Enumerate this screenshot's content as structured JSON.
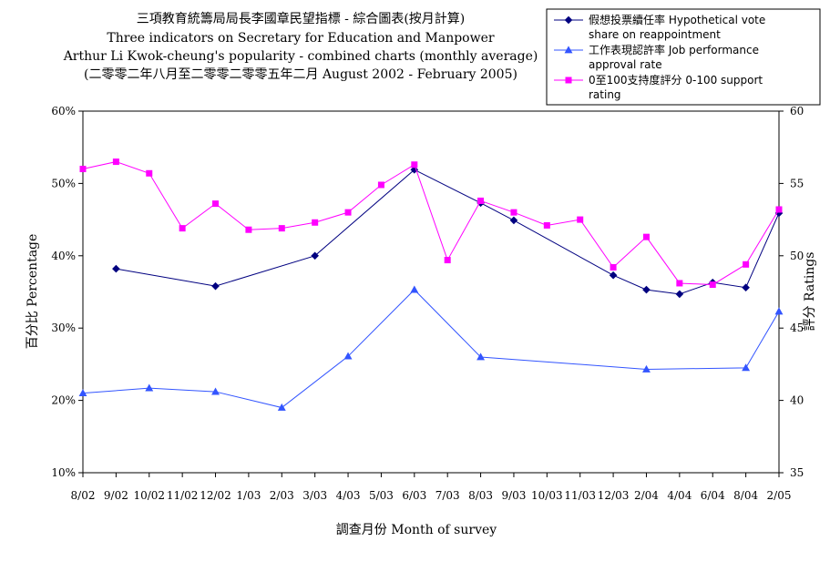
{
  "chart_data": {
    "type": "line",
    "title_lines": [
      "三項教育統籌局局長李國章民望指標 - 綜合圖表(按月計算)",
      "Three indicators on Secretary for Education and Manpower",
      "Arthur Li Kwok-cheung's popularity - combined charts (monthly average)",
      "(二零零二年八月至二零零二零零五年二月 August 2002 - February 2005)"
    ],
    "xlabel": "調查月份  Month of survey",
    "ylabel_left": "百分比  Percentage",
    "ylabel_right": "評分  Ratings",
    "categories": [
      "8/02",
      "9/02",
      "10/02",
      "11/02",
      "12/02",
      "1/03",
      "2/03",
      "3/03",
      "4/03",
      "5/03",
      "6/03",
      "7/03",
      "8/03",
      "9/03",
      "10/03",
      "11/03",
      "12/03",
      "2/04",
      "4/04",
      "6/04",
      "8/04",
      "2/05"
    ],
    "y_left": {
      "min": 10,
      "max": 60,
      "ticks": [
        "10%",
        "20%",
        "30%",
        "40%",
        "50%",
        "60%"
      ],
      "tick_values": [
        10,
        20,
        30,
        40,
        50,
        60
      ]
    },
    "y_right": {
      "min": 35,
      "max": 60,
      "ticks": [
        "35",
        "40",
        "45",
        "50",
        "55",
        "60"
      ],
      "tick_values": [
        35,
        40,
        45,
        50,
        55,
        60
      ]
    },
    "legend_position": "top-right",
    "series": [
      {
        "name": "假想投票續任率  Hypothetical vote share on reappointment",
        "legend_lines": [
          "假想投票續任率 Hypothetical vote",
          "share on reappointment"
        ],
        "axis": "left",
        "color": "#000080",
        "marker": "diamond",
        "values": [
          null,
          38.2,
          null,
          null,
          35.8,
          null,
          null,
          40.0,
          null,
          null,
          51.9,
          null,
          47.3,
          44.9,
          null,
          null,
          37.3,
          35.3,
          34.7,
          36.3,
          35.6,
          45.9
        ]
      },
      {
        "name": "工作表現認許率  Job performance approval rate",
        "legend_lines": [
          "工作表現認許率 Job performance",
          "approval rate"
        ],
        "axis": "left",
        "color": "#3355ff",
        "marker": "triangle",
        "values": [
          21.0,
          null,
          21.7,
          null,
          21.2,
          null,
          19.0,
          null,
          26.1,
          null,
          35.3,
          null,
          26.0,
          null,
          null,
          null,
          null,
          24.3,
          null,
          null,
          24.5,
          32.3
        ]
      },
      {
        "name": "0至100支持度評分  0-100 support rating",
        "legend_lines": [
          "0至100支持度評分 0-100 support",
          "rating"
        ],
        "axis": "right",
        "color": "#ff00ff",
        "marker": "square",
        "values": [
          56.0,
          56.5,
          55.7,
          51.9,
          53.6,
          51.8,
          51.9,
          52.3,
          53.0,
          54.9,
          56.3,
          49.7,
          53.8,
          53.0,
          52.1,
          52.5,
          49.2,
          51.3,
          48.1,
          48.0,
          49.4,
          53.2
        ]
      }
    ]
  }
}
